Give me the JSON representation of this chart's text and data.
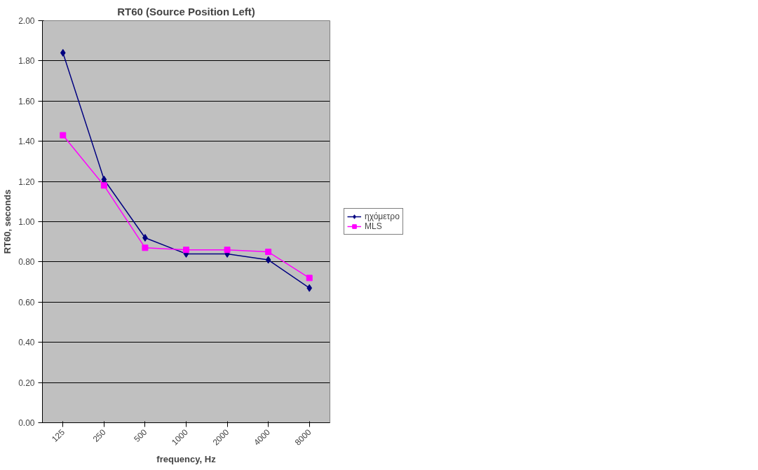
{
  "chart_data": {
    "type": "line",
    "title": "RT60 (Source Position Left)",
    "xlabel": "frequency, Hz",
    "ylabel": "RT60, seconds",
    "categories": [
      "125",
      "250",
      "500",
      "1000",
      "2000",
      "4000",
      "8000"
    ],
    "series": [
      {
        "name": "ηχόμετρο",
        "color": "#000080",
        "marker": "diamond",
        "values": [
          1.84,
          1.21,
          0.92,
          0.84,
          0.84,
          0.81,
          0.67
        ]
      },
      {
        "name": "MLS",
        "color": "#ff00ff",
        "marker": "square",
        "values": [
          1.43,
          1.18,
          0.87,
          0.86,
          0.86,
          0.85,
          0.72
        ]
      }
    ],
    "ylim": [
      0,
      2
    ],
    "yticks": [
      {
        "value": 0,
        "label": "0.00"
      },
      {
        "value": 0.2,
        "label": "0.20"
      },
      {
        "value": 0.4,
        "label": "0.40"
      },
      {
        "value": 0.6,
        "label": "0.60"
      },
      {
        "value": 0.8,
        "label": "0.80"
      },
      {
        "value": 1.0,
        "label": "1.00"
      },
      {
        "value": 1.2,
        "label": "1.20"
      },
      {
        "value": 1.4,
        "label": "1.40"
      },
      {
        "value": 1.6,
        "label": "1.60"
      },
      {
        "value": 1.8,
        "label": "1.80"
      },
      {
        "value": 2.0,
        "label": "2.00"
      }
    ],
    "grid": "y",
    "legend": "right",
    "line_style": "solid"
  }
}
